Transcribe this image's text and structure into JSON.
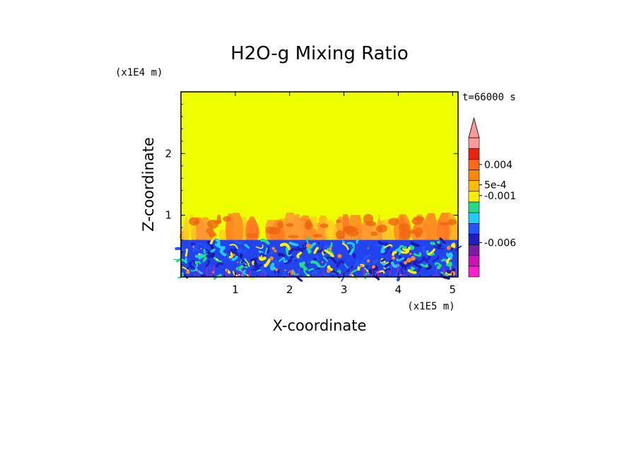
{
  "chart_data": {
    "type": "heatmap",
    "title": "H2O-g Mixing Ratio",
    "xlabel": "X-coordinate",
    "ylabel": "Z-coordinate",
    "x_unit": "(x1E5 m)",
    "y_unit": "(x1E4 m)",
    "time_label": "t=66000 s",
    "xlim": [
      0,
      5.1
    ],
    "ylim": [
      0,
      3.0
    ],
    "x_ticks": [
      1,
      2,
      3,
      4,
      5
    ],
    "y_ticks": [
      1,
      2
    ],
    "boundary_layer_top": 0.6,
    "plume_top": 1.05,
    "colorbar": {
      "colors": [
        "#ff22cc",
        "#cc11bb",
        "#7a1aa8",
        "#1f1fbf",
        "#2255ff",
        "#22ccff",
        "#22dd88",
        "#ffee00",
        "#ffbb00",
        "#ff8800",
        "#ff6a1a",
        "#ee2211",
        "#ff9999"
      ],
      "extend_top": true,
      "labels": [
        {
          "text": "0.004",
          "value": 0.004
        },
        {
          "text": "5e-4",
          "value": 0.0005
        },
        {
          "text": "-0.001",
          "value": -0.001
        },
        {
          "text": "-0.006",
          "value": -0.006
        }
      ]
    },
    "regions": [
      {
        "name": "free-atmosphere",
        "color": "#eeff00"
      },
      {
        "name": "plumes",
        "color": "#ff8822"
      },
      {
        "name": "boundary-layer",
        "color": "#2244ee"
      }
    ]
  }
}
